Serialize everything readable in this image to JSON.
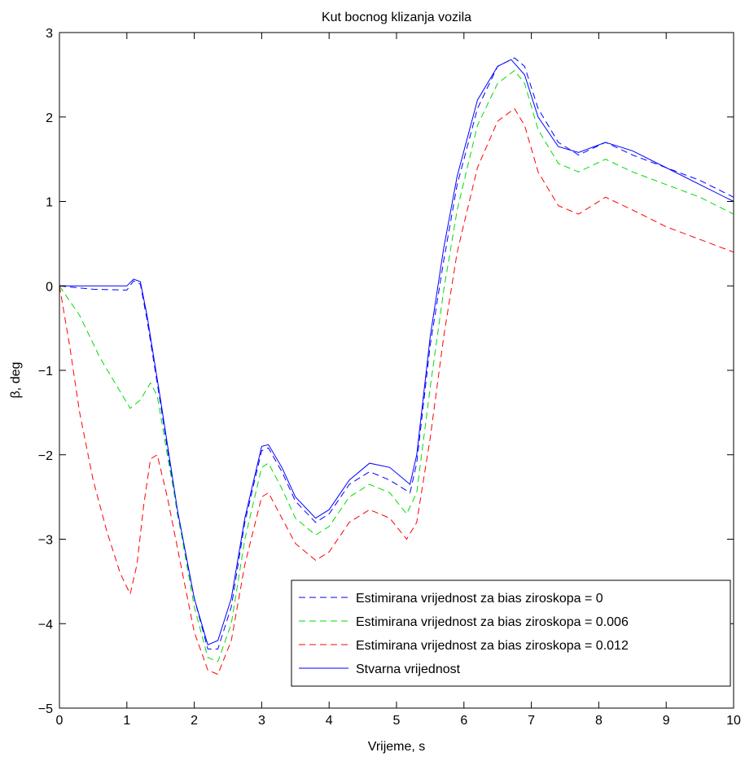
{
  "chart_data": {
    "type": "line",
    "title": "Kut bocnog klizanja vozila",
    "xlabel": "Vrijeme, s",
    "ylabel": "β, deg",
    "xlim": [
      0,
      10
    ],
    "ylim": [
      -5,
      3
    ],
    "xticks": [
      "0",
      "1",
      "2",
      "3",
      "4",
      "5",
      "6",
      "7",
      "8",
      "9",
      "10"
    ],
    "yticks": [
      "3",
      "2",
      "1",
      "0",
      "−1",
      "−2",
      "−3",
      "−4",
      "−5"
    ],
    "grid": false,
    "legend_position": "bottom-right",
    "series": [
      {
        "name": "Estimirana vrijednost za bias ziroskopa = 0",
        "color": "#0000ff",
        "style": "dashed",
        "points": [
          [
            0,
            0
          ],
          [
            0.5,
            -0.04
          ],
          [
            1.0,
            -0.05
          ],
          [
            1.1,
            0.06
          ],
          [
            1.2,
            0.02
          ],
          [
            1.3,
            -0.4
          ],
          [
            1.5,
            -1.4
          ],
          [
            1.75,
            -2.7
          ],
          [
            2.0,
            -3.7
          ],
          [
            2.2,
            -4.3
          ],
          [
            2.35,
            -4.3
          ],
          [
            2.55,
            -3.8
          ],
          [
            2.75,
            -2.8
          ],
          [
            3.0,
            -1.95
          ],
          [
            3.1,
            -1.92
          ],
          [
            3.3,
            -2.2
          ],
          [
            3.5,
            -2.55
          ],
          [
            3.8,
            -2.8
          ],
          [
            4.0,
            -2.7
          ],
          [
            4.3,
            -2.35
          ],
          [
            4.6,
            -2.2
          ],
          [
            4.9,
            -2.3
          ],
          [
            5.2,
            -2.45
          ],
          [
            5.3,
            -2.1
          ],
          [
            5.5,
            -0.7
          ],
          [
            5.7,
            0.3
          ],
          [
            5.9,
            1.2
          ],
          [
            6.2,
            2.1
          ],
          [
            6.5,
            2.6
          ],
          [
            6.75,
            2.7
          ],
          [
            6.9,
            2.6
          ],
          [
            7.1,
            2.1
          ],
          [
            7.4,
            1.7
          ],
          [
            7.7,
            1.55
          ],
          [
            8.1,
            1.7
          ],
          [
            8.5,
            1.55
          ],
          [
            9.0,
            1.4
          ],
          [
            9.5,
            1.25
          ],
          [
            10.0,
            1.05
          ]
        ]
      },
      {
        "name": "Estimirana vrijednost za bias ziroskopa = 0.006",
        "color": "#00dd00",
        "style": "dashed",
        "points": [
          [
            0,
            0
          ],
          [
            0.3,
            -0.35
          ],
          [
            0.6,
            -0.85
          ],
          [
            0.9,
            -1.25
          ],
          [
            1.05,
            -1.45
          ],
          [
            1.2,
            -1.35
          ],
          [
            1.35,
            -1.15
          ],
          [
            1.45,
            -1.3
          ],
          [
            1.6,
            -2.0
          ],
          [
            1.8,
            -2.9
          ],
          [
            2.0,
            -3.8
          ],
          [
            2.2,
            -4.4
          ],
          [
            2.35,
            -4.45
          ],
          [
            2.55,
            -4.0
          ],
          [
            2.75,
            -3.0
          ],
          [
            3.0,
            -2.15
          ],
          [
            3.1,
            -2.1
          ],
          [
            3.3,
            -2.4
          ],
          [
            3.5,
            -2.75
          ],
          [
            3.8,
            -2.95
          ],
          [
            4.0,
            -2.85
          ],
          [
            4.3,
            -2.5
          ],
          [
            4.6,
            -2.35
          ],
          [
            4.9,
            -2.45
          ],
          [
            5.15,
            -2.7
          ],
          [
            5.3,
            -2.45
          ],
          [
            5.5,
            -1.2
          ],
          [
            5.7,
            -0.05
          ],
          [
            5.9,
            0.9
          ],
          [
            6.2,
            1.9
          ],
          [
            6.5,
            2.4
          ],
          [
            6.75,
            2.55
          ],
          [
            6.9,
            2.4
          ],
          [
            7.1,
            1.85
          ],
          [
            7.4,
            1.45
          ],
          [
            7.7,
            1.35
          ],
          [
            8.1,
            1.5
          ],
          [
            8.5,
            1.35
          ],
          [
            9.0,
            1.2
          ],
          [
            9.5,
            1.05
          ],
          [
            10.0,
            0.85
          ]
        ]
      },
      {
        "name": "Estimirana vrijednost za bias ziroskopa = 0.012",
        "color": "#ff0000",
        "style": "dashed",
        "points": [
          [
            0,
            0
          ],
          [
            0.15,
            -0.7
          ],
          [
            0.3,
            -1.5
          ],
          [
            0.5,
            -2.3
          ],
          [
            0.7,
            -2.9
          ],
          [
            0.9,
            -3.4
          ],
          [
            1.05,
            -3.65
          ],
          [
            1.15,
            -3.3
          ],
          [
            1.25,
            -2.6
          ],
          [
            1.35,
            -2.05
          ],
          [
            1.45,
            -2.0
          ],
          [
            1.6,
            -2.5
          ],
          [
            1.8,
            -3.3
          ],
          [
            2.0,
            -4.1
          ],
          [
            2.2,
            -4.55
          ],
          [
            2.35,
            -4.6
          ],
          [
            2.55,
            -4.2
          ],
          [
            2.75,
            -3.3
          ],
          [
            3.0,
            -2.5
          ],
          [
            3.1,
            -2.45
          ],
          [
            3.3,
            -2.75
          ],
          [
            3.5,
            -3.05
          ],
          [
            3.8,
            -3.25
          ],
          [
            4.0,
            -3.15
          ],
          [
            4.3,
            -2.8
          ],
          [
            4.6,
            -2.65
          ],
          [
            4.9,
            -2.75
          ],
          [
            5.15,
            -3.0
          ],
          [
            5.3,
            -2.8
          ],
          [
            5.5,
            -1.8
          ],
          [
            5.7,
            -0.6
          ],
          [
            5.9,
            0.4
          ],
          [
            6.2,
            1.4
          ],
          [
            6.5,
            1.95
          ],
          [
            6.75,
            2.1
          ],
          [
            6.9,
            1.9
          ],
          [
            7.1,
            1.35
          ],
          [
            7.4,
            0.95
          ],
          [
            7.7,
            0.85
          ],
          [
            8.1,
            1.05
          ],
          [
            8.5,
            0.9
          ],
          [
            9.0,
            0.7
          ],
          [
            9.5,
            0.55
          ],
          [
            10.0,
            0.4
          ]
        ]
      },
      {
        "name": "Stvarna vrijednost",
        "color": "#0000ff",
        "style": "solid",
        "points": [
          [
            0,
            0
          ],
          [
            0.5,
            0
          ],
          [
            1.0,
            0
          ],
          [
            1.1,
            0.08
          ],
          [
            1.2,
            0.05
          ],
          [
            1.3,
            -0.35
          ],
          [
            1.5,
            -1.35
          ],
          [
            1.75,
            -2.65
          ],
          [
            2.0,
            -3.7
          ],
          [
            2.2,
            -4.25
          ],
          [
            2.35,
            -4.2
          ],
          [
            2.55,
            -3.7
          ],
          [
            2.75,
            -2.75
          ],
          [
            3.0,
            -1.9
          ],
          [
            3.1,
            -1.88
          ],
          [
            3.3,
            -2.15
          ],
          [
            3.5,
            -2.5
          ],
          [
            3.8,
            -2.75
          ],
          [
            4.0,
            -2.65
          ],
          [
            4.3,
            -2.3
          ],
          [
            4.6,
            -2.1
          ],
          [
            4.9,
            -2.15
          ],
          [
            5.2,
            -2.35
          ],
          [
            5.3,
            -2.0
          ],
          [
            5.5,
            -0.6
          ],
          [
            5.7,
            0.45
          ],
          [
            5.9,
            1.3
          ],
          [
            6.2,
            2.2
          ],
          [
            6.5,
            2.6
          ],
          [
            6.7,
            2.68
          ],
          [
            6.9,
            2.5
          ],
          [
            7.1,
            2.0
          ],
          [
            7.4,
            1.65
          ],
          [
            7.7,
            1.58
          ],
          [
            8.1,
            1.7
          ],
          [
            8.5,
            1.6
          ],
          [
            9.0,
            1.4
          ],
          [
            9.5,
            1.2
          ],
          [
            10.0,
            1.0
          ]
        ]
      }
    ]
  }
}
